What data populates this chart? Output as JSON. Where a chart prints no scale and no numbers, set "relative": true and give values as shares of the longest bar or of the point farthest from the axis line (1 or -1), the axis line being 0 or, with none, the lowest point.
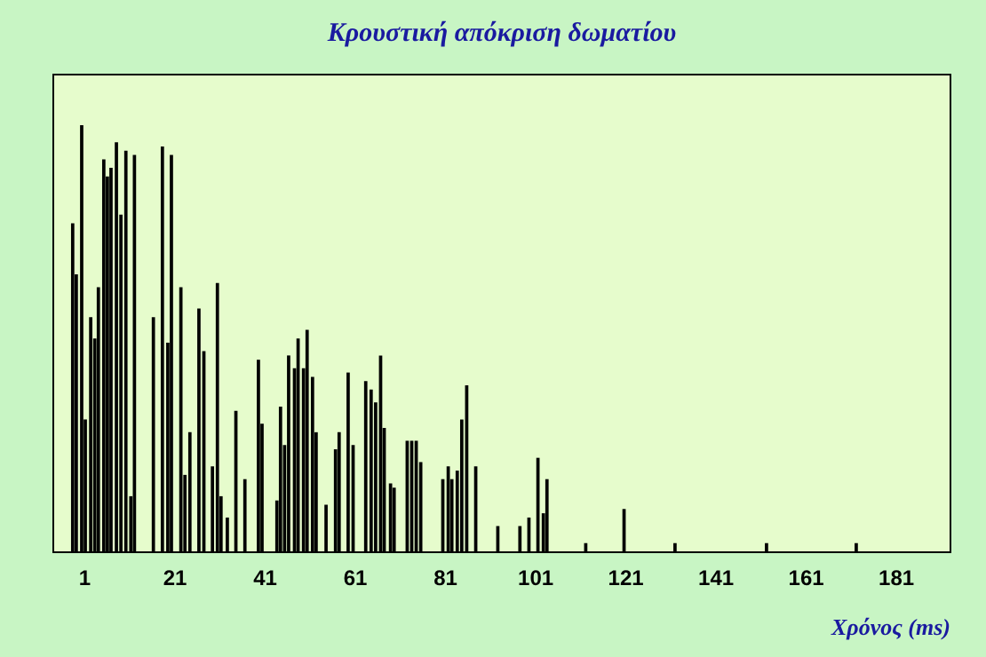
{
  "chart_data": {
    "type": "bar",
    "title": "Κρουστική απόκριση δωματίου",
    "xlabel": "Χρόνος (ms)",
    "relative": true,
    "color": "#000000",
    "grid": false,
    "legend": false,
    "x": [
      -1.7,
      -0.9,
      0.3,
      1.1,
      2.3,
      3.2,
      4.0,
      5.2,
      6.0,
      6.8,
      8.0,
      9.0,
      10.1,
      11.2,
      12.0,
      16.2,
      18.2,
      19.4,
      20.2,
      22.3,
      23.2,
      24.3,
      26.3,
      27.4,
      29.3,
      30.4,
      31.2,
      32.6,
      34.5,
      36.5,
      39.5,
      40.3,
      43.6,
      44.4,
      45.3,
      46.2,
      47.5,
      48.3,
      49.5,
      50.3,
      51.5,
      52.3,
      54.5,
      56.6,
      57.4,
      59.4,
      60.5,
      63.3,
      64.5,
      65.5,
      66.6,
      67.4,
      68.8,
      69.6,
      72.5,
      73.5,
      74.5,
      75.5,
      80.4,
      81.6,
      82.4,
      83.6,
      84.6,
      85.7,
      87.7,
      92.6,
      97.5,
      99.5,
      101.5,
      102.7,
      103.5,
      112.1,
      120.6,
      131.9,
      152.2,
      172.1
    ],
    "values": [
      0.77,
      0.65,
      1,
      0.31,
      0.55,
      0.5,
      0.62,
      0.92,
      0.88,
      0.9,
      0.96,
      0.79,
      0.94,
      0.13,
      0.93,
      0.55,
      0.95,
      0.49,
      0.93,
      0.62,
      0.18,
      0.28,
      0.57,
      0.47,
      0.2,
      0.63,
      0.13,
      0.08,
      0.33,
      0.17,
      0.45,
      0.3,
      0.12,
      0.34,
      0.25,
      0.46,
      0.43,
      0.5,
      0.43,
      0.52,
      0.41,
      0.28,
      0.11,
      0.24,
      0.28,
      0.42,
      0.25,
      0.4,
      0.38,
      0.35,
      0.46,
      0.29,
      0.16,
      0.15,
      0.26,
      0.26,
      0.26,
      0.21,
      0.17,
      0.2,
      0.17,
      0.19,
      0.31,
      0.39,
      0.2,
      0.06,
      0.06,
      0.08,
      0.22,
      0.09,
      0.17,
      0.02,
      0.1,
      0.02,
      0.02,
      0.02
    ],
    "xlim": [
      -6,
      193
    ],
    "xticks": [
      1,
      21,
      41,
      61,
      81,
      101,
      121,
      141,
      161,
      181
    ]
  }
}
